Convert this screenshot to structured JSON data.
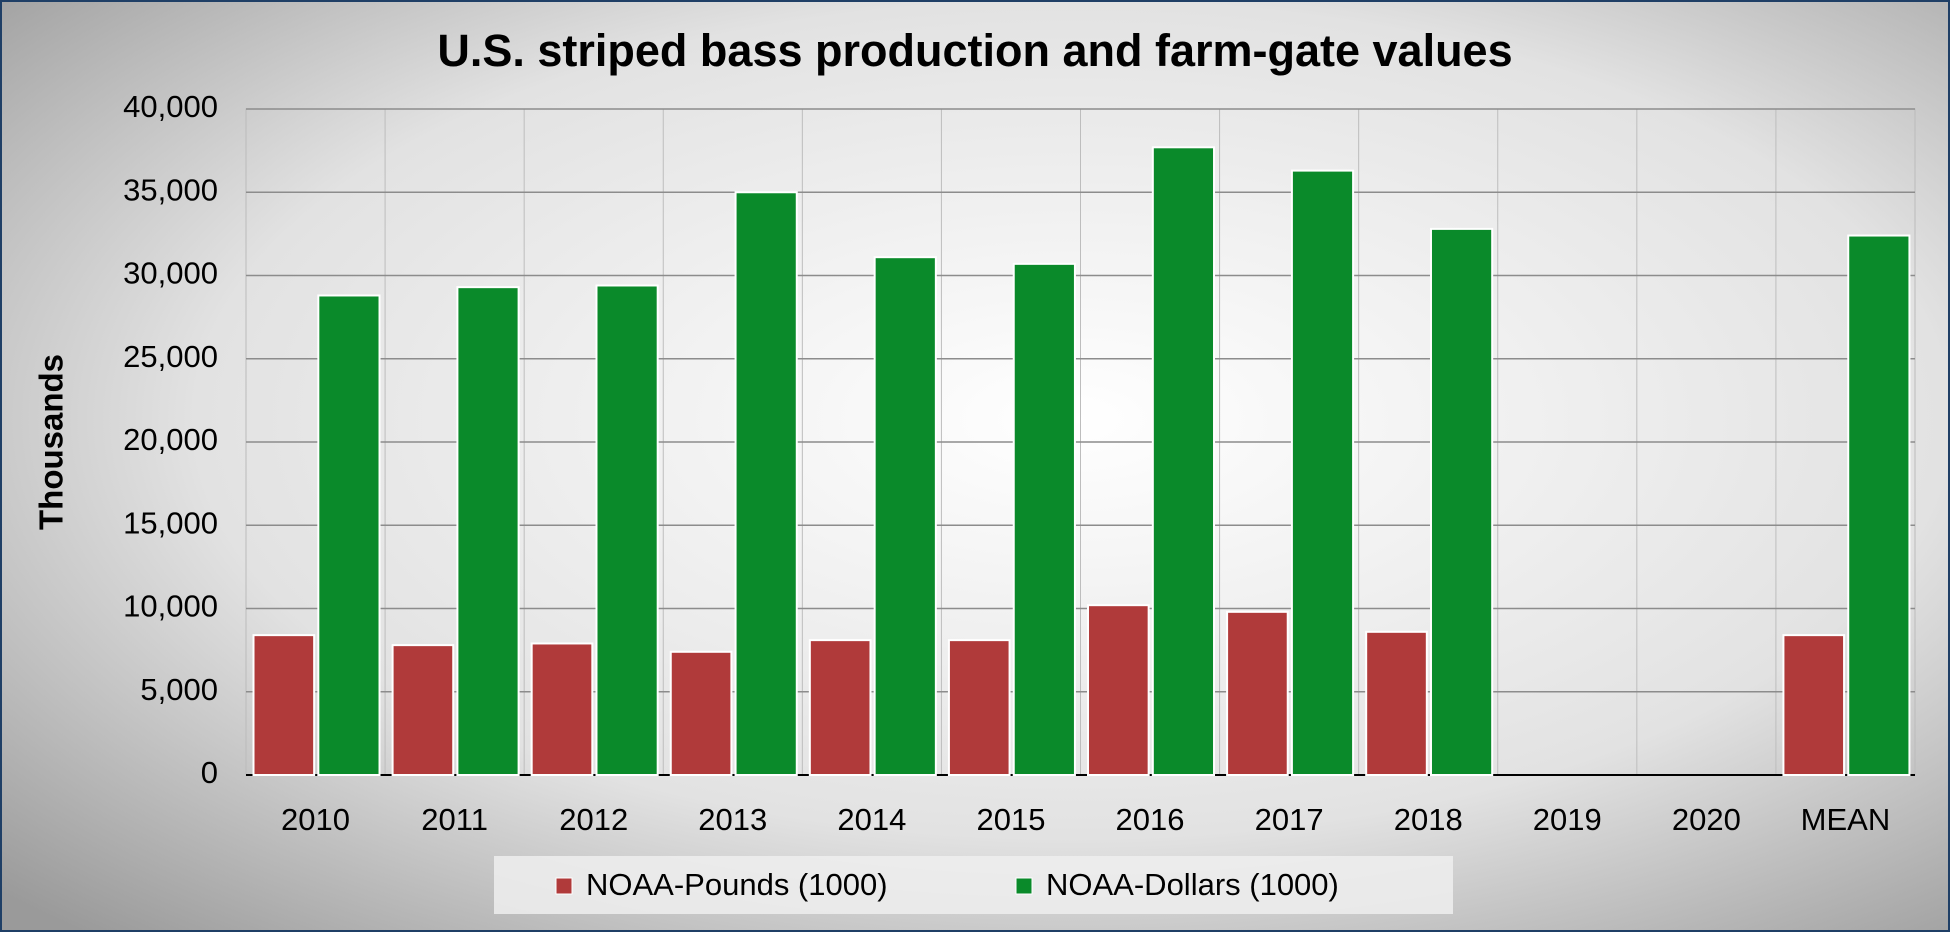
{
  "chart_data": {
    "type": "bar",
    "title": "U.S. striped bass production and farm-gate values",
    "y_label": "Thousands",
    "categories": [
      "2010",
      "2011",
      "2012",
      "2013",
      "2014",
      "2015",
      "2016",
      "2017",
      "2018",
      "2019",
      "2020",
      "MEAN"
    ],
    "series": [
      {
        "name": "NOAA-Pounds (1000)",
        "color": "#b03a3a",
        "values": [
          8400,
          7800,
          7900,
          7400,
          8100,
          8100,
          10200,
          9800,
          8600,
          null,
          null,
          8400
        ]
      },
      {
        "name": "NOAA-Dollars (1000)",
        "color": "#0a8a2a",
        "values": [
          28800,
          29300,
          29400,
          35000,
          31100,
          30700,
          37700,
          36300,
          32800,
          null,
          null,
          32400
        ]
      }
    ],
    "ylim": [
      0,
      40000
    ],
    "yticks": [
      0,
      {
        "value": 5000,
        "label": "5,000"
      },
      {
        "value": 10000,
        "label": "10,000"
      },
      {
        "value": 15000,
        "label": "15,000"
      },
      {
        "value": 20000,
        "label": "20,000"
      },
      {
        "value": 25000,
        "label": "25,000"
      },
      {
        "value": 30000,
        "label": "30,000"
      },
      {
        "value": 35000,
        "label": "35,000"
      },
      {
        "value": 40000,
        "label": "40,000"
      }
    ],
    "grid": true,
    "legend": "bottom"
  }
}
